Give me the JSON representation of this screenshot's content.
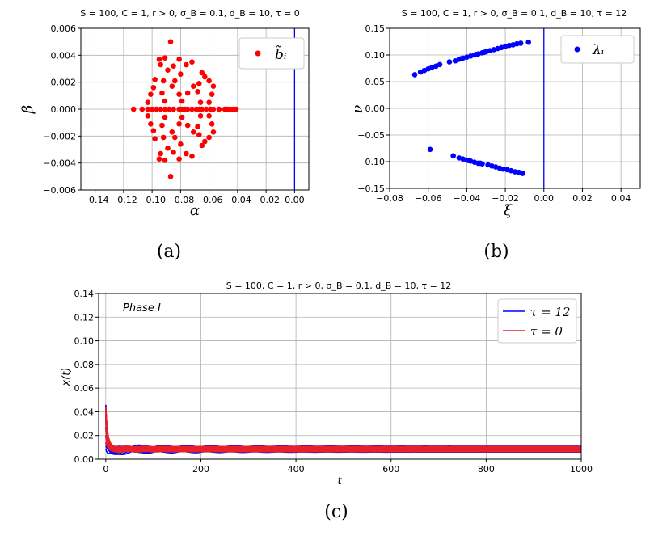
{
  "chart_data": [
    {
      "id": "a",
      "type": "scatter",
      "title": "S = 100,  C = 1,  r > 0,  σ_B = 0.1,  d_B = 10,  τ = 0",
      "xlabel": "α",
      "ylabel": "β",
      "xlim": [
        -0.15,
        0.01
      ],
      "ylim": [
        -0.006,
        0.006
      ],
      "xticks": [
        -0.14,
        -0.12,
        -0.1,
        -0.08,
        -0.06,
        -0.04,
        -0.02,
        0.0
      ],
      "xtick_labels": [
        "−0.14",
        "−0.12",
        "−0.10",
        "−0.08",
        "−0.06",
        "−0.04",
        "−0.02",
        "0.00"
      ],
      "yticks": [
        -0.006,
        -0.004,
        -0.002,
        0.0,
        0.002,
        0.004,
        0.006
      ],
      "ytick_labels": [
        "−0.006",
        "−0.004",
        "−0.002",
        "0.000",
        "0.002",
        "0.004",
        "0.006"
      ],
      "vline": 0.0,
      "vline_color": "#0000ff",
      "grid": true,
      "legend": {
        "label": "b̃ᵢ",
        "placement": "top-right"
      },
      "caption": "(a)",
      "series": [
        {
          "color": "#ff0000",
          "points": [
            [
              -0.113,
              0.0
            ],
            [
              -0.107,
              0.0
            ],
            [
              -0.103,
              0.0
            ],
            [
              -0.1,
              0.0
            ],
            [
              -0.097,
              0.0
            ],
            [
              -0.094,
              0.0
            ],
            [
              -0.091,
              0.0
            ],
            [
              -0.088,
              0.0
            ],
            [
              -0.085,
              0.0
            ],
            [
              -0.081,
              0.0
            ],
            [
              -0.079,
              0.0
            ],
            [
              -0.077,
              0.0
            ],
            [
              -0.075,
              0.0
            ],
            [
              -0.072,
              0.0
            ],
            [
              -0.069,
              0.0
            ],
            [
              -0.067,
              0.0
            ],
            [
              -0.065,
              0.0
            ],
            [
              -0.062,
              0.0
            ],
            [
              -0.059,
              0.0
            ],
            [
              -0.057,
              0.0
            ],
            [
              -0.053,
              0.0
            ],
            [
              -0.049,
              0.0
            ],
            [
              -0.047,
              0.0
            ],
            [
              -0.045,
              0.0
            ],
            [
              -0.043,
              0.0
            ],
            [
              -0.041,
              0.0
            ],
            [
              -0.087,
              0.005
            ],
            [
              -0.087,
              -0.005
            ],
            [
              -0.095,
              0.0037
            ],
            [
              -0.095,
              -0.0037
            ],
            [
              -0.091,
              0.0038
            ],
            [
              -0.091,
              -0.0038
            ],
            [
              -0.081,
              0.0037
            ],
            [
              -0.081,
              -0.0037
            ],
            [
              -0.094,
              0.0033
            ],
            [
              -0.094,
              -0.0033
            ],
            [
              -0.085,
              0.0032
            ],
            [
              -0.085,
              -0.0032
            ],
            [
              -0.076,
              0.0033
            ],
            [
              -0.076,
              -0.0033
            ],
            [
              -0.072,
              0.0035
            ],
            [
              -0.072,
              -0.0035
            ],
            [
              -0.089,
              0.0029
            ],
            [
              -0.089,
              -0.0029
            ],
            [
              -0.08,
              0.0026
            ],
            [
              -0.08,
              -0.0026
            ],
            [
              -0.065,
              0.0027
            ],
            [
              -0.065,
              -0.0027
            ],
            [
              -0.063,
              0.0024
            ],
            [
              -0.063,
              -0.0024
            ],
            [
              -0.098,
              0.0022
            ],
            [
              -0.098,
              -0.0022
            ],
            [
              -0.092,
              0.0021
            ],
            [
              -0.092,
              -0.0021
            ],
            [
              -0.084,
              0.0021
            ],
            [
              -0.084,
              -0.0021
            ],
            [
              -0.06,
              0.0021
            ],
            [
              -0.06,
              -0.0021
            ],
            [
              -0.101,
              0.0011
            ],
            [
              -0.101,
              -0.0011
            ],
            [
              -0.093,
              0.0012
            ],
            [
              -0.093,
              -0.0012
            ],
            [
              -0.081,
              0.0011
            ],
            [
              -0.081,
              -0.0011
            ],
            [
              -0.068,
              0.0013
            ],
            [
              -0.068,
              -0.0013
            ],
            [
              -0.058,
              0.0011
            ],
            [
              -0.058,
              -0.0011
            ],
            [
              -0.103,
              0.0005
            ],
            [
              -0.103,
              -0.0005
            ],
            [
              -0.091,
              0.0006
            ],
            [
              -0.091,
              -0.0006
            ],
            [
              -0.079,
              0.0006
            ],
            [
              -0.079,
              -0.0006
            ],
            [
              -0.066,
              0.0005
            ],
            [
              -0.066,
              -0.0005
            ],
            [
              -0.06,
              0.0005
            ],
            [
              -0.06,
              -0.0005
            ],
            [
              -0.099,
              0.0016
            ],
            [
              -0.099,
              -0.0016
            ],
            [
              -0.071,
              0.0017
            ],
            [
              -0.071,
              -0.0017
            ],
            [
              -0.067,
              0.0019
            ],
            [
              -0.067,
              -0.0019
            ],
            [
              -0.057,
              0.0017
            ],
            [
              -0.057,
              -0.0017
            ],
            [
              -0.086,
              0.0017
            ],
            [
              -0.086,
              -0.0017
            ],
            [
              -0.075,
              0.0012
            ],
            [
              -0.075,
              -0.0012
            ]
          ]
        }
      ]
    },
    {
      "id": "b",
      "type": "scatter",
      "title": "S = 100,  C = 1,  r > 0,  σ_B = 0.1,  d_B = 10,  τ = 12",
      "xlabel": "ξ",
      "ylabel": "ν",
      "xlim": [
        -0.08,
        0.05
      ],
      "ylim": [
        -0.15,
        0.15
      ],
      "xticks": [
        -0.08,
        -0.06,
        -0.04,
        -0.02,
        0.0,
        0.02,
        0.04
      ],
      "xtick_labels": [
        "−0.08",
        "−0.06",
        "−0.04",
        "−0.02",
        "0.00",
        "0.02",
        "0.04"
      ],
      "yticks": [
        -0.15,
        -0.1,
        -0.05,
        0.0,
        0.05,
        0.1,
        0.15
      ],
      "ytick_labels": [
        "−0.15",
        "−0.10",
        "−0.05",
        "0.00",
        "0.05",
        "0.10",
        "0.15"
      ],
      "vline": 0.0,
      "vline_color": "#0000ff",
      "grid": true,
      "legend": {
        "label": "λᵢ",
        "placement": "top-right"
      },
      "caption": "(b)",
      "series": [
        {
          "color": "#0000ff",
          "points": [
            [
              -0.067,
              0.063
            ],
            [
              -0.064,
              0.068
            ],
            [
              -0.062,
              0.071
            ],
            [
              -0.06,
              0.074
            ],
            [
              -0.058,
              0.077
            ],
            [
              -0.056,
              0.079
            ],
            [
              -0.054,
              0.082
            ],
            [
              -0.049,
              0.087
            ],
            [
              -0.046,
              0.089
            ],
            [
              -0.044,
              0.092
            ],
            [
              -0.042,
              0.094
            ],
            [
              -0.04,
              0.096
            ],
            [
              -0.038,
              0.098
            ],
            [
              -0.036,
              0.1
            ],
            [
              -0.034,
              0.102
            ],
            [
              -0.032,
              0.104
            ],
            [
              -0.03,
              0.106
            ],
            [
              -0.028,
              0.108
            ],
            [
              -0.026,
              0.11
            ],
            [
              -0.024,
              0.112
            ],
            [
              -0.022,
              0.114
            ],
            [
              -0.02,
              0.116
            ],
            [
              -0.018,
              0.118
            ],
            [
              -0.016,
              0.119
            ],
            [
              -0.014,
              0.121
            ],
            [
              -0.012,
              0.122
            ],
            [
              -0.008,
              0.124
            ],
            [
              -0.043,
              0.093
            ],
            [
              -0.035,
              0.101
            ],
            [
              -0.031,
              0.105
            ],
            [
              -0.059,
              -0.077
            ],
            [
              -0.047,
              -0.089
            ],
            [
              -0.044,
              -0.093
            ],
            [
              -0.042,
              -0.095
            ],
            [
              -0.04,
              -0.097
            ],
            [
              -0.038,
              -0.099
            ],
            [
              -0.036,
              -0.101
            ],
            [
              -0.034,
              -0.103
            ],
            [
              -0.032,
              -0.104
            ],
            [
              -0.029,
              -0.106
            ],
            [
              -0.027,
              -0.108
            ],
            [
              -0.025,
              -0.11
            ],
            [
              -0.023,
              -0.112
            ],
            [
              -0.021,
              -0.114
            ],
            [
              -0.019,
              -0.115
            ],
            [
              -0.017,
              -0.117
            ],
            [
              -0.015,
              -0.119
            ],
            [
              -0.013,
              -0.12
            ],
            [
              -0.011,
              -0.122
            ],
            [
              -0.039,
              -0.098
            ],
            [
              -0.033,
              -0.103
            ]
          ]
        }
      ]
    },
    {
      "id": "c",
      "type": "line",
      "title": "S = 100,  C = 1,  r > 0,  σ_B = 0.1,  d_B = 10,  τ = 12",
      "xlabel": "t",
      "ylabel": "x(t)",
      "xlim": [
        -15,
        1000
      ],
      "ylim": [
        0.0,
        0.14
      ],
      "xticks": [
        0,
        200,
        400,
        600,
        800,
        1000
      ],
      "xtick_labels": [
        "0",
        "200",
        "400",
        "600",
        "800",
        "1000"
      ],
      "yticks": [
        0.0,
        0.02,
        0.04,
        0.06,
        0.08,
        0.1,
        0.12,
        0.14
      ],
      "ytick_labels": [
        "0.00",
        "0.02",
        "0.04",
        "0.06",
        "0.08",
        "0.10",
        "0.12",
        "0.14"
      ],
      "grid": true,
      "annotation": "Phase I",
      "legend": {
        "placement": "top-right"
      },
      "caption": "(c)",
      "series": [
        {
          "name": "τ = 12",
          "color": "#0000ff",
          "initial": 0.05,
          "steady": 0.0085,
          "spread": 0.0025
        },
        {
          "name": "τ = 0",
          "color": "#e8202a",
          "initial": 0.045,
          "steady": 0.0085,
          "spread": 0.0022
        }
      ]
    }
  ]
}
